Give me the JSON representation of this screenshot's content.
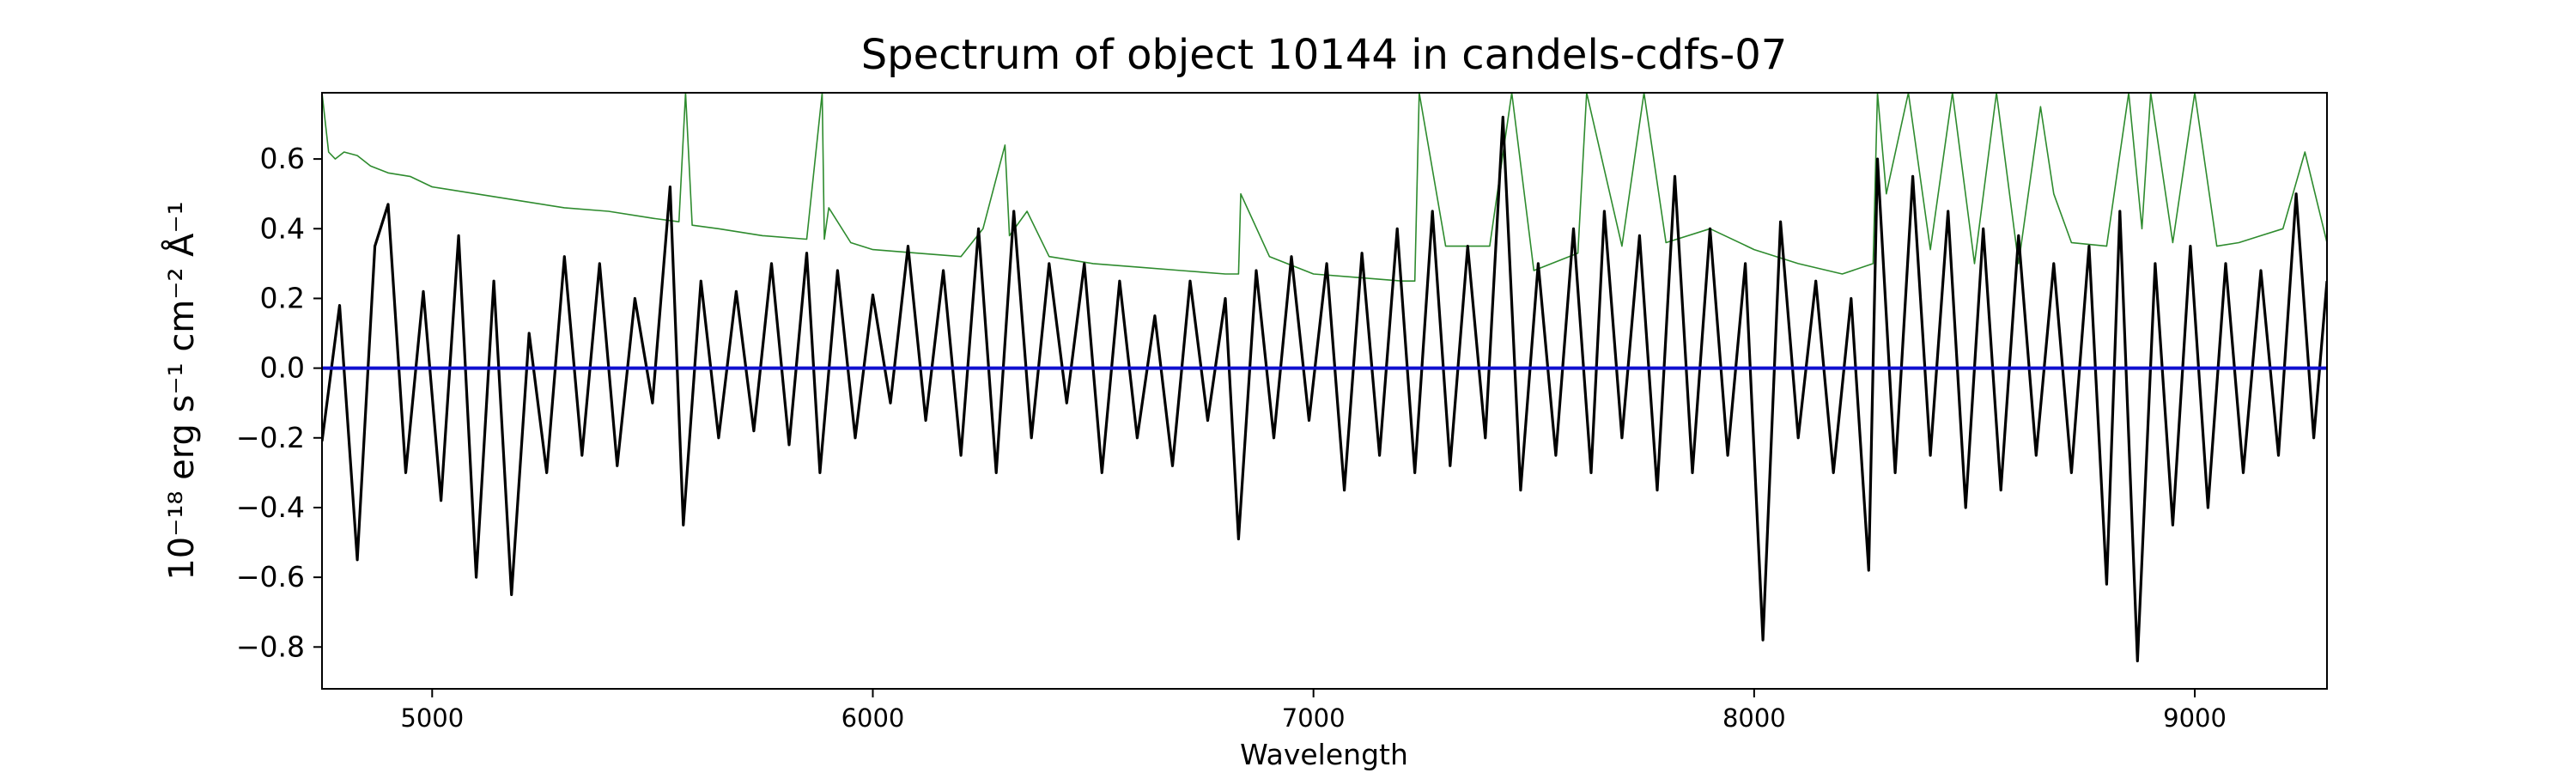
{
  "chart_data": {
    "type": "line",
    "title": "Spectrum of object 10144 in candels-cdfs-07",
    "xlabel": "Wavelength",
    "ylabel": "10⁻¹⁸ erg s⁻¹ cm⁻² Å⁻¹",
    "xlim": [
      4750,
      9300
    ],
    "ylim": [
      -0.92,
      0.79
    ],
    "xticks": [
      5000,
      6000,
      7000,
      8000,
      9000
    ],
    "xtick_labels": [
      "5000",
      "6000",
      "7000",
      "8000",
      "9000"
    ],
    "yticks": [
      -0.8,
      -0.6,
      -0.4,
      -0.2,
      0.0,
      0.2,
      0.4,
      0.6
    ],
    "ytick_labels": [
      "−0.8",
      "−0.6",
      "−0.4",
      "−0.2",
      "0.0",
      "0.2",
      "0.4",
      "0.6"
    ],
    "grid": false,
    "series": [
      {
        "role": "flux",
        "color": "#000000",
        "x": [
          4750,
          4790,
          4830,
          4870,
          4900,
          4940,
          4980,
          5020,
          5060,
          5100,
          5140,
          5180,
          5220,
          5260,
          5300,
          5340,
          5380,
          5420,
          5460,
          5500,
          5540,
          5570,
          5610,
          5650,
          5690,
          5730,
          5770,
          5810,
          5850,
          5880,
          5920,
          5960,
          6000,
          6040,
          6080,
          6120,
          6160,
          6200,
          6240,
          6280,
          6320,
          6360,
          6400,
          6440,
          6480,
          6520,
          6560,
          6600,
          6640,
          6680,
          6720,
          6760,
          6800,
          6830,
          6870,
          6910,
          6950,
          6990,
          7030,
          7070,
          7110,
          7150,
          7190,
          7230,
          7270,
          7310,
          7350,
          7390,
          7430,
          7470,
          7510,
          7550,
          7590,
          7630,
          7660,
          7700,
          7740,
          7780,
          7820,
          7860,
          7900,
          7940,
          7980,
          8020,
          8060,
          8100,
          8140,
          8180,
          8220,
          8260,
          8280,
          8320,
          8360,
          8400,
          8440,
          8480,
          8520,
          8560,
          8600,
          8640,
          8680,
          8720,
          8760,
          8800,
          8830,
          8870,
          8910,
          8950,
          8990,
          9030,
          9070,
          9110,
          9150,
          9190,
          9230,
          9270,
          9300
        ],
        "y": [
          -0.21,
          0.18,
          -0.55,
          0.35,
          0.47,
          -0.3,
          0.22,
          -0.38,
          0.38,
          -0.6,
          0.25,
          -0.65,
          0.1,
          -0.3,
          0.32,
          -0.25,
          0.3,
          -0.28,
          0.2,
          -0.1,
          0.52,
          -0.45,
          0.25,
          -0.2,
          0.22,
          -0.18,
          0.3,
          -0.22,
          0.33,
          -0.3,
          0.28,
          -0.2,
          0.21,
          -0.1,
          0.35,
          -0.15,
          0.28,
          -0.25,
          0.4,
          -0.3,
          0.45,
          -0.2,
          0.3,
          -0.1,
          0.3,
          -0.3,
          0.25,
          -0.2,
          0.15,
          -0.28,
          0.25,
          -0.15,
          0.2,
          -0.49,
          0.28,
          -0.2,
          0.32,
          -0.15,
          0.3,
          -0.35,
          0.33,
          -0.25,
          0.4,
          -0.3,
          0.45,
          -0.28,
          0.35,
          -0.2,
          0.72,
          -0.35,
          0.3,
          -0.25,
          0.4,
          -0.3,
          0.45,
          -0.2,
          0.38,
          -0.35,
          0.55,
          -0.3,
          0.4,
          -0.25,
          0.3,
          -0.78,
          0.42,
          -0.2,
          0.25,
          -0.3,
          0.2,
          -0.58,
          0.6,
          -0.3,
          0.55,
          -0.25,
          0.45,
          -0.4,
          0.4,
          -0.35,
          0.38,
          -0.25,
          0.3,
          -0.3,
          0.35,
          -0.62,
          0.45,
          -0.84,
          0.3,
          -0.45,
          0.35,
          -0.4,
          0.3,
          -0.3,
          0.28,
          -0.25,
          0.5,
          -0.2,
          0.25
        ]
      },
      {
        "role": "error",
        "color": "#2e8b2e",
        "x": [
          4750,
          4765,
          4780,
          4800,
          4830,
          4860,
          4900,
          4950,
          5000,
          5100,
          5200,
          5300,
          5400,
          5500,
          5560,
          5575,
          5590,
          5650,
          5750,
          5850,
          5885,
          5890,
          5900,
          5950,
          6000,
          6100,
          6200,
          6250,
          6300,
          6310,
          6350,
          6400,
          6500,
          6600,
          6700,
          6800,
          6830,
          6835,
          6900,
          7000,
          7100,
          7200,
          7230,
          7240,
          7300,
          7400,
          7450,
          7500,
          7600,
          7620,
          7700,
          7750,
          7800,
          7900,
          8000,
          8100,
          8200,
          8270,
          8280,
          8300,
          8350,
          8400,
          8450,
          8500,
          8550,
          8600,
          8650,
          8680,
          8720,
          8800,
          8850,
          8880,
          8900,
          8950,
          9000,
          9050,
          9100,
          9150,
          9200,
          9250,
          9300
        ],
        "y": [
          0.79,
          0.62,
          0.6,
          0.62,
          0.61,
          0.58,
          0.56,
          0.55,
          0.52,
          0.5,
          0.48,
          0.46,
          0.45,
          0.43,
          0.42,
          0.79,
          0.41,
          0.4,
          0.38,
          0.37,
          0.79,
          0.37,
          0.46,
          0.36,
          0.34,
          0.33,
          0.32,
          0.4,
          0.64,
          0.38,
          0.45,
          0.32,
          0.3,
          0.29,
          0.28,
          0.27,
          0.27,
          0.5,
          0.32,
          0.27,
          0.26,
          0.25,
          0.25,
          0.79,
          0.35,
          0.35,
          0.79,
          0.28,
          0.33,
          0.79,
          0.35,
          0.79,
          0.36,
          0.4,
          0.34,
          0.3,
          0.27,
          0.3,
          0.79,
          0.5,
          0.79,
          0.34,
          0.79,
          0.3,
          0.79,
          0.3,
          0.75,
          0.5,
          0.36,
          0.35,
          0.79,
          0.4,
          0.79,
          0.36,
          0.79,
          0.35,
          0.36,
          0.38,
          0.4,
          0.62,
          0.36
        ]
      },
      {
        "role": "zero-line",
        "color": "#1010d0",
        "x": [
          4750,
          9300
        ],
        "y": [
          0,
          0
        ]
      }
    ]
  }
}
